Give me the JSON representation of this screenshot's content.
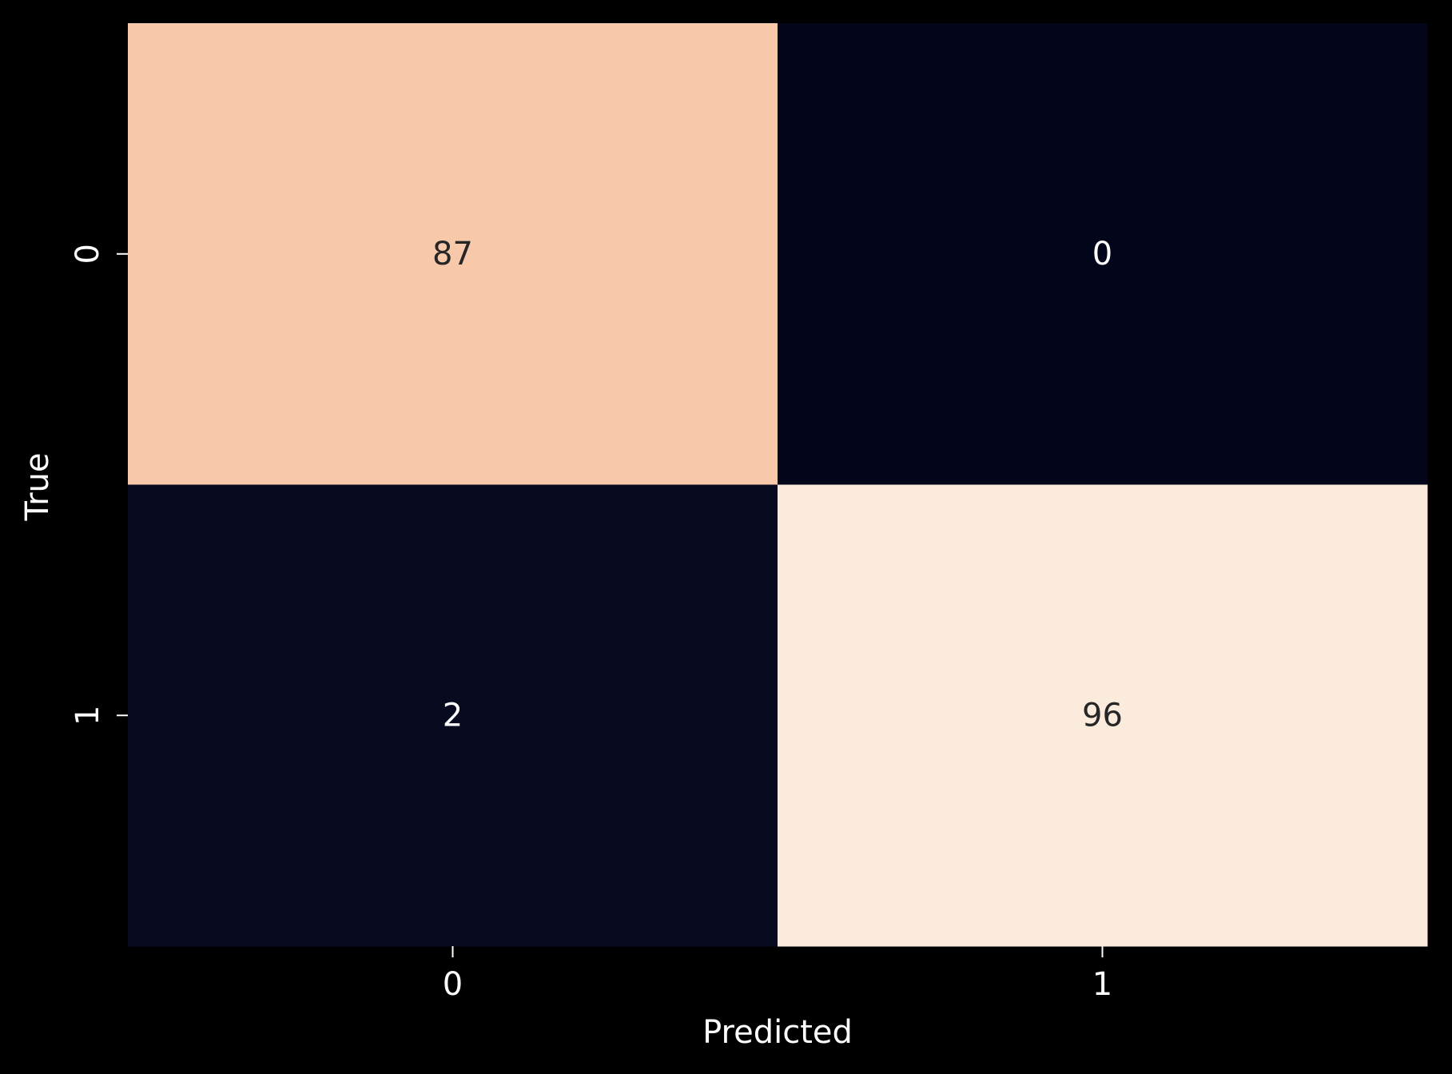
{
  "chart_data": {
    "type": "heatmap",
    "x_categories": [
      "0",
      "1"
    ],
    "y_categories": [
      "0",
      "1"
    ],
    "values": [
      [
        87,
        0
      ],
      [
        2,
        96
      ]
    ],
    "xlabel": "Predicted",
    "ylabel": "True",
    "colorbar": false,
    "colormap": "rocket",
    "cell_colors": [
      [
        "#f7c8aa",
        "#03051a"
      ],
      [
        "#080a1f",
        "#fbebdc"
      ]
    ],
    "annotation_colors": {
      "dark": "#262626",
      "light": "#ffffff"
    }
  }
}
